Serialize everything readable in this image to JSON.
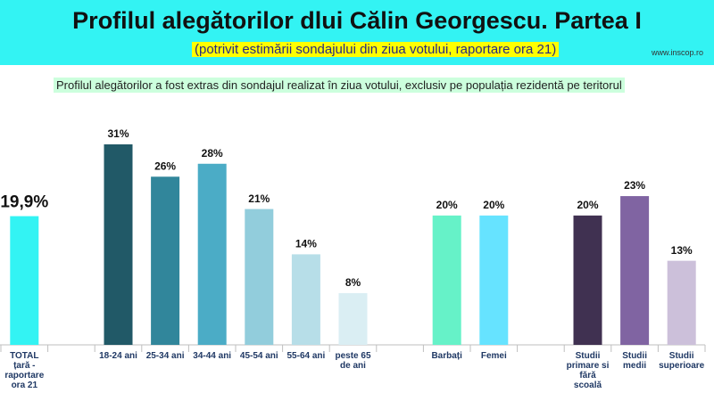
{
  "chart_data": {
    "type": "bar",
    "title": "Profilul alegătorilor dlui Călin Georgescu. Partea I",
    "subtitle": "(potrivit estimării sondajului din ziua votului, raportare ora 21)",
    "source": "www.inscop.ro",
    "note": "Profilul alegătorilor a fost extras din sondajul realizat în ziua votului, exclusiv pe populația rezidentă pe teritorul",
    "categories": [
      "TOTAL țară - raportare ora 21",
      null,
      "18-24 ani",
      "25-34 ani",
      "34-44 ani",
      "45-54 ani",
      "55-64 ani",
      "peste 65 de ani",
      null,
      "Barbați",
      "Femei",
      null,
      "Studii primare si fără scoală",
      "Studii medii",
      "Studii superioare"
    ],
    "values": [
      19.9,
      null,
      31,
      26,
      28,
      21,
      14,
      8,
      null,
      20,
      20,
      null,
      20,
      23,
      13
    ],
    "value_labels": [
      "19,9%",
      null,
      "31%",
      "26%",
      "28%",
      "21%",
      "14%",
      "8%",
      null,
      "20%",
      "20%",
      null,
      "20%",
      "23%",
      "13%"
    ],
    "colors": [
      "#33f3f3",
      null,
      "#215967",
      "#31869b",
      "#4bacc6",
      "#92cddc",
      "#b7dee8",
      "#daeef3",
      null,
      "#66f2c8",
      "#66e3ff",
      null,
      "#403151",
      "#8064a2",
      "#ccc0da"
    ]
  }
}
